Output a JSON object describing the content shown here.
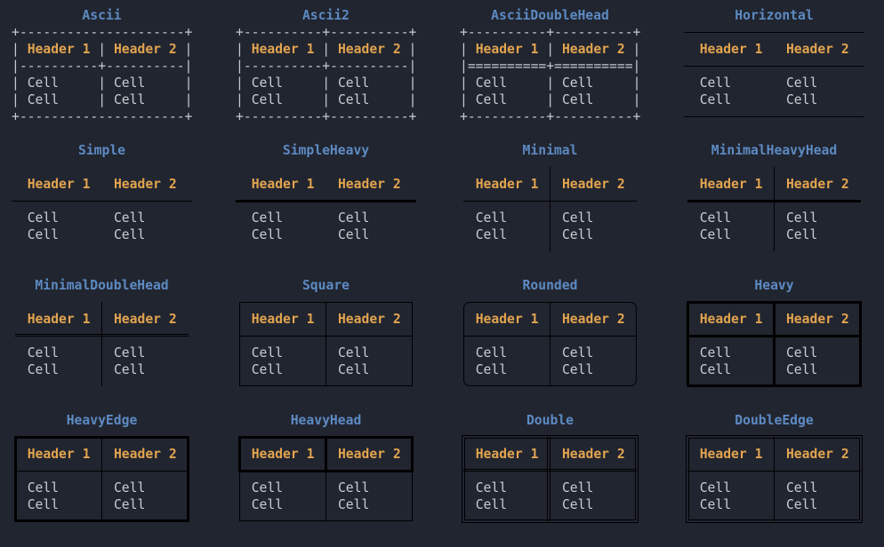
{
  "app": {
    "description": "Terminal output showing table box styles",
    "colors": {
      "background": "#212530",
      "title": "#5d8ac2",
      "header": "#e2a44f",
      "cell": "#c9cdd2",
      "border": "#c5cad0"
    }
  },
  "header_labels": [
    "Header 1",
    "Header 2"
  ],
  "cell_label": "Cell",
  "shared_text_rows": [
    [],
    [
      [
        "p",
        "  "
      ],
      [
        "h",
        "Header 1"
      ],
      [
        "p",
        "   "
      ],
      [
        "h",
        "Header 2"
      ]
    ],
    [],
    [
      [
        "p",
        "  "
      ],
      [
        "c",
        "Cell"
      ],
      [
        "p",
        "       "
      ],
      [
        "c",
        "Cell"
      ]
    ],
    [
      [
        "p",
        "  "
      ],
      [
        "c",
        "Cell"
      ],
      [
        "p",
        "       "
      ],
      [
        "c",
        "Cell"
      ]
    ],
    []
  ],
  "tables": [
    {
      "id": "ascii",
      "title": "Ascii",
      "style": "ascii",
      "rows": [
        [
          [
            "b",
            "+---------------------+"
          ]
        ],
        [
          [
            "b",
            "| "
          ],
          [
            "h",
            "Header 1"
          ],
          [
            "b",
            " | "
          ],
          [
            "h",
            "Header 2"
          ],
          [
            "b",
            " |"
          ]
        ],
        [
          [
            "b",
            "|----------+----------|"
          ]
        ],
        [
          [
            "b",
            "| "
          ],
          [
            "c",
            "Cell"
          ],
          [
            "p",
            "     "
          ],
          [
            "b",
            "| "
          ],
          [
            "c",
            "Cell"
          ],
          [
            "p",
            "     "
          ],
          [
            "b",
            "|"
          ]
        ],
        [
          [
            "b",
            "| "
          ],
          [
            "c",
            "Cell"
          ],
          [
            "p",
            "     "
          ],
          [
            "b",
            "| "
          ],
          [
            "c",
            "Cell"
          ],
          [
            "p",
            "     "
          ],
          [
            "b",
            "|"
          ]
        ],
        [
          [
            "b",
            "+---------------------+"
          ]
        ]
      ]
    },
    {
      "id": "ascii2",
      "title": "Ascii2",
      "style": "ascii",
      "rows": [
        [
          [
            "b",
            "+----------+----------+"
          ]
        ],
        [
          [
            "b",
            "| "
          ],
          [
            "h",
            "Header 1"
          ],
          [
            "b",
            " | "
          ],
          [
            "h",
            "Header 2"
          ],
          [
            "b",
            " |"
          ]
        ],
        [
          [
            "b",
            "|----------+----------|"
          ]
        ],
        [
          [
            "b",
            "| "
          ],
          [
            "c",
            "Cell"
          ],
          [
            "p",
            "     "
          ],
          [
            "b",
            "| "
          ],
          [
            "c",
            "Cell"
          ],
          [
            "p",
            "     "
          ],
          [
            "b",
            "|"
          ]
        ],
        [
          [
            "b",
            "| "
          ],
          [
            "c",
            "Cell"
          ],
          [
            "p",
            "     "
          ],
          [
            "b",
            "| "
          ],
          [
            "c",
            "Cell"
          ],
          [
            "p",
            "     "
          ],
          [
            "b",
            "|"
          ]
        ],
        [
          [
            "b",
            "+----------+----------+"
          ]
        ]
      ]
    },
    {
      "id": "ascii-double-head",
      "title": "AsciiDoubleHead",
      "style": "ascii",
      "rows": [
        [
          [
            "b",
            "+----------+----------+"
          ]
        ],
        [
          [
            "b",
            "| "
          ],
          [
            "h",
            "Header 1"
          ],
          [
            "b",
            " | "
          ],
          [
            "h",
            "Header 2"
          ],
          [
            "b",
            " |"
          ]
        ],
        [
          [
            "b",
            "|==========+==========|"
          ]
        ],
        [
          [
            "b",
            "| "
          ],
          [
            "c",
            "Cell"
          ],
          [
            "p",
            "     "
          ],
          [
            "b",
            "| "
          ],
          [
            "c",
            "Cell"
          ],
          [
            "p",
            "     "
          ],
          [
            "b",
            "|"
          ]
        ],
        [
          [
            "b",
            "| "
          ],
          [
            "c",
            "Cell"
          ],
          [
            "p",
            "     "
          ],
          [
            "b",
            "| "
          ],
          [
            "c",
            "Cell"
          ],
          [
            "p",
            "     "
          ],
          [
            "b",
            "|"
          ]
        ],
        [
          [
            "b",
            "+----------+----------+"
          ]
        ]
      ]
    },
    {
      "id": "horizontal",
      "title": "Horizontal",
      "style": "horizontal",
      "rows": "shared"
    },
    {
      "id": "simple",
      "title": "Simple",
      "style": "simple",
      "rows": "shared"
    },
    {
      "id": "simple-heavy",
      "title": "SimpleHeavy",
      "style": "simple_heavy",
      "rows": "shared"
    },
    {
      "id": "minimal",
      "title": "Minimal",
      "style": "minimal",
      "rows": "shared"
    },
    {
      "id": "minimal-heavy-head",
      "title": "MinimalHeavyHead",
      "style": "minimal_heavy_head",
      "rows": "shared"
    },
    {
      "id": "minimal-double-head",
      "title": "MinimalDoubleHead",
      "style": "minimal_double_head",
      "rows": "shared"
    },
    {
      "id": "square",
      "title": "Square",
      "style": "square",
      "rows": "shared"
    },
    {
      "id": "rounded",
      "title": "Rounded",
      "style": "rounded",
      "rows": "shared"
    },
    {
      "id": "heavy",
      "title": "Heavy",
      "style": "heavy",
      "rows": "shared"
    },
    {
      "id": "heavy-edge",
      "title": "HeavyEdge",
      "style": "heavy_edge",
      "rows": "shared"
    },
    {
      "id": "heavy-head",
      "title": "HeavyHead",
      "style": "heavy_head",
      "rows": "shared"
    },
    {
      "id": "double",
      "title": "Double",
      "style": "double",
      "rows": "shared"
    },
    {
      "id": "double-edge",
      "title": "DoubleEdge",
      "style": "double_edge",
      "rows": "shared"
    }
  ]
}
